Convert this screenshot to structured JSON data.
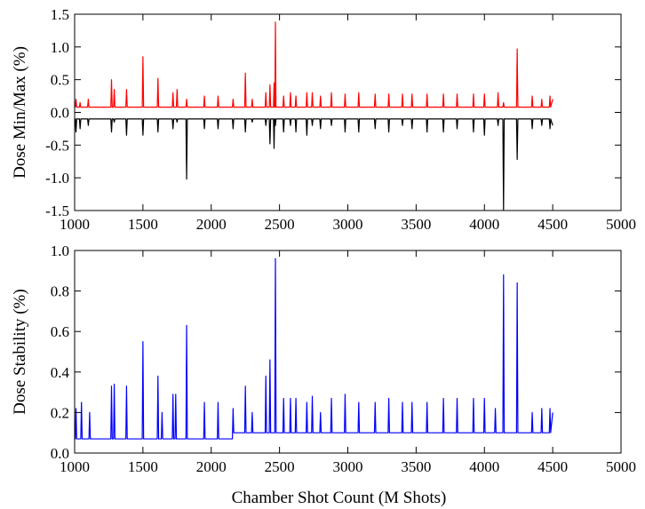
{
  "chart_data": [
    {
      "type": "line",
      "y_label": "Dose Min/Max (%)",
      "xlim": [
        1000,
        5000
      ],
      "ylim": [
        -1.5,
        1.5
      ],
      "xticks": [
        1000,
        1500,
        2000,
        2500,
        3000,
        3500,
        4000,
        4500,
        5000
      ],
      "yticks": [
        -1.5,
        {
          "value": -1,
          "label": "-1.0"
        },
        -0.5,
        {
          "value": 0,
          "label": "0.0"
        },
        0.5,
        {
          "value": 1,
          "label": "1.0"
        },
        1.5
      ],
      "x": [
        1000,
        1005,
        1010,
        1015,
        1035,
        1040,
        1045,
        1095,
        1100,
        1105,
        1265,
        1270,
        1275,
        1285,
        1290,
        1295,
        1375,
        1380,
        1385,
        1495,
        1500,
        1505,
        1605,
        1610,
        1615,
        1715,
        1720,
        1725,
        1745,
        1750,
        1755,
        1815,
        1820,
        1825,
        1945,
        1950,
        1955,
        2045,
        2050,
        2055,
        2155,
        2160,
        2165,
        2245,
        2250,
        2255,
        2295,
        2300,
        2305,
        2395,
        2400,
        2405,
        2425,
        2430,
        2435,
        2456,
        2460,
        2464,
        2466,
        2470,
        2474,
        2525,
        2530,
        2535,
        2575,
        2580,
        2585,
        2615,
        2620,
        2625,
        2695,
        2700,
        2705,
        2735,
        2740,
        2745,
        2795,
        2800,
        2805,
        2875,
        2880,
        2885,
        2975,
        2980,
        2985,
        3075,
        3080,
        3085,
        3195,
        3200,
        3205,
        3295,
        3300,
        3305,
        3395,
        3400,
        3405,
        3465,
        3470,
        3475,
        3575,
        3580,
        3585,
        3695,
        3700,
        3705,
        3795,
        3800,
        3805,
        3915,
        3920,
        3925,
        3995,
        4000,
        4005,
        4095,
        4100,
        4105,
        4135,
        4140,
        4145,
        4235,
        4240,
        4245,
        4345,
        4350,
        4355,
        4415,
        4420,
        4425,
        4475,
        4480,
        4485,
        4500
      ],
      "series": [
        {
          "color": "#ff0000",
          "values": [
            0.1,
            0.08,
            0.2,
            0.08,
            0.08,
            0.15,
            0.08,
            0.08,
            0.2,
            0.08,
            0.08,
            0.5,
            0.08,
            0.08,
            0.35,
            0.08,
            0.08,
            0.35,
            0.08,
            0.08,
            0.85,
            0.08,
            0.08,
            0.52,
            0.08,
            0.08,
            0.3,
            0.08,
            0.08,
            0.35,
            0.08,
            0.08,
            0.2,
            0.08,
            0.08,
            0.25,
            0.08,
            0.08,
            0.25,
            0.08,
            0.08,
            0.2,
            0.08,
            0.08,
            0.6,
            0.08,
            0.08,
            0.2,
            0.08,
            0.08,
            0.3,
            0.08,
            0.08,
            0.42,
            0.08,
            0.08,
            0.45,
            0.08,
            0.08,
            1.38,
            0.08,
            0.08,
            0.25,
            0.08,
            0.08,
            0.3,
            0.08,
            0.08,
            0.25,
            0.08,
            0.08,
            0.3,
            0.08,
            0.08,
            0.3,
            0.08,
            0.08,
            0.25,
            0.08,
            0.08,
            0.3,
            0.08,
            0.08,
            0.28,
            0.08,
            0.08,
            0.3,
            0.08,
            0.08,
            0.28,
            0.08,
            0.08,
            0.28,
            0.08,
            0.08,
            0.28,
            0.08,
            0.08,
            0.28,
            0.08,
            0.08,
            0.28,
            0.08,
            0.08,
            0.28,
            0.08,
            0.08,
            0.28,
            0.08,
            0.08,
            0.28,
            0.08,
            0.08,
            0.28,
            0.08,
            0.08,
            0.3,
            0.08,
            0.08,
            0.15,
            0.08,
            0.08,
            0.97,
            0.08,
            0.08,
            0.25,
            0.08,
            0.08,
            0.2,
            0.08,
            0.08,
            0.25,
            0.08,
            0.2
          ]
        },
        {
          "color": "#000000",
          "values": [
            -0.2,
            -0.1,
            -0.3,
            -0.1,
            -0.1,
            -0.25,
            -0.1,
            -0.1,
            -0.2,
            -0.1,
            -0.1,
            -0.3,
            -0.1,
            -0.1,
            -0.15,
            -0.1,
            -0.1,
            -0.35,
            -0.1,
            -0.1,
            -0.35,
            -0.1,
            -0.1,
            -0.3,
            -0.1,
            -0.1,
            -0.25,
            -0.1,
            -0.1,
            -0.15,
            -0.1,
            -0.1,
            -1.02,
            -0.1,
            -0.1,
            -0.25,
            -0.1,
            -0.1,
            -0.25,
            -0.1,
            -0.1,
            -0.25,
            -0.1,
            -0.1,
            -0.3,
            -0.1,
            -0.1,
            -0.15,
            -0.1,
            -0.1,
            -0.2,
            -0.1,
            -0.1,
            -0.48,
            -0.1,
            -0.1,
            -0.55,
            -0.1,
            -0.1,
            -0.2,
            -0.1,
            -0.1,
            -0.3,
            -0.1,
            -0.1,
            -0.2,
            -0.1,
            -0.1,
            -0.3,
            -0.1,
            -0.1,
            -0.35,
            -0.1,
            -0.1,
            -0.2,
            -0.1,
            -0.1,
            -0.25,
            -0.1,
            -0.1,
            -0.2,
            -0.1,
            -0.1,
            -0.3,
            -0.1,
            -0.1,
            -0.3,
            -0.1,
            -0.1,
            -0.25,
            -0.1,
            -0.1,
            -0.3,
            -0.1,
            -0.1,
            -0.2,
            -0.1,
            -0.1,
            -0.25,
            -0.1,
            -0.1,
            -0.3,
            -0.1,
            -0.1,
            -0.3,
            -0.1,
            -0.1,
            -0.25,
            -0.1,
            -0.1,
            -0.3,
            -0.1,
            -0.1,
            -0.35,
            -0.1,
            -0.1,
            -0.2,
            -0.1,
            -0.1,
            -1.5,
            -0.1,
            -0.1,
            -0.72,
            -0.1,
            -0.1,
            -0.25,
            -0.1,
            -0.1,
            -0.2,
            -0.1,
            -0.1,
            -0.25,
            -0.1,
            -0.2
          ]
        }
      ]
    },
    {
      "type": "line",
      "y_label": "Dose Stability (%)",
      "x_label": "Chamber Shot Count (M Shots)",
      "xlim": [
        1000,
        5000
      ],
      "ylim": [
        0,
        1
      ],
      "xticks": [
        1000,
        1500,
        2000,
        2500,
        3000,
        3500,
        4000,
        4500,
        5000
      ],
      "yticks": [
        {
          "value": 0,
          "label": "0.0"
        },
        0.2,
        0.4,
        0.6,
        0.8,
        {
          "value": 1,
          "label": "1.0"
        }
      ],
      "x": [
        1000,
        1005,
        1010,
        1015,
        1045,
        1050,
        1055,
        1105,
        1110,
        1115,
        1265,
        1270,
        1275,
        1285,
        1290,
        1295,
        1375,
        1380,
        1385,
        1495,
        1500,
        1505,
        1605,
        1610,
        1615,
        1635,
        1640,
        1645,
        1715,
        1720,
        1725,
        1735,
        1740,
        1745,
        1815,
        1820,
        1825,
        1945,
        1950,
        1955,
        2045,
        2050,
        2055,
        2155,
        2160,
        2165,
        2245,
        2250,
        2255,
        2295,
        2300,
        2305,
        2395,
        2400,
        2405,
        2425,
        2430,
        2435,
        2465,
        2470,
        2475,
        2525,
        2530,
        2535,
        2575,
        2580,
        2585,
        2615,
        2620,
        2625,
        2695,
        2700,
        2705,
        2735,
        2740,
        2745,
        2795,
        2800,
        2805,
        2875,
        2880,
        2885,
        2975,
        2980,
        2985,
        3075,
        3080,
        3085,
        3195,
        3200,
        3205,
        3295,
        3300,
        3305,
        3395,
        3400,
        3405,
        3465,
        3470,
        3475,
        3575,
        3580,
        3585,
        3695,
        3700,
        3705,
        3795,
        3800,
        3805,
        3915,
        3920,
        3925,
        3995,
        4000,
        4005,
        4075,
        4080,
        4085,
        4135,
        4140,
        4145,
        4235,
        4240,
        4245,
        4345,
        4350,
        4355,
        4415,
        4420,
        4425,
        4475,
        4480,
        4485,
        4500
      ],
      "series": [
        {
          "color": "#0000ff",
          "values": [
            0.15,
            0.07,
            0.22,
            0.07,
            0.07,
            0.25,
            0.07,
            0.07,
            0.2,
            0.07,
            0.07,
            0.33,
            0.07,
            0.07,
            0.34,
            0.07,
            0.07,
            0.33,
            0.07,
            0.07,
            0.55,
            0.07,
            0.07,
            0.38,
            0.07,
            0.07,
            0.2,
            0.07,
            0.07,
            0.29,
            0.07,
            0.07,
            0.29,
            0.07,
            0.07,
            0.63,
            0.07,
            0.07,
            0.25,
            0.07,
            0.07,
            0.25,
            0.07,
            0.07,
            0.22,
            0.1,
            0.1,
            0.33,
            0.1,
            0.1,
            0.2,
            0.1,
            0.1,
            0.38,
            0.1,
            0.1,
            0.46,
            0.1,
            0.1,
            0.96,
            0.1,
            0.1,
            0.27,
            0.1,
            0.1,
            0.27,
            0.1,
            0.1,
            0.27,
            0.1,
            0.1,
            0.25,
            0.1,
            0.1,
            0.28,
            0.1,
            0.1,
            0.2,
            0.1,
            0.1,
            0.27,
            0.1,
            0.1,
            0.29,
            0.1,
            0.1,
            0.25,
            0.1,
            0.1,
            0.25,
            0.1,
            0.1,
            0.27,
            0.1,
            0.1,
            0.25,
            0.1,
            0.1,
            0.25,
            0.1,
            0.1,
            0.25,
            0.1,
            0.1,
            0.27,
            0.1,
            0.1,
            0.27,
            0.1,
            0.1,
            0.27,
            0.1,
            0.1,
            0.27,
            0.1,
            0.1,
            0.22,
            0.1,
            0.1,
            0.88,
            0.1,
            0.1,
            0.84,
            0.1,
            0.1,
            0.2,
            0.1,
            0.1,
            0.22,
            0.1,
            0.1,
            0.22,
            0.1,
            0.2
          ]
        }
      ]
    }
  ]
}
